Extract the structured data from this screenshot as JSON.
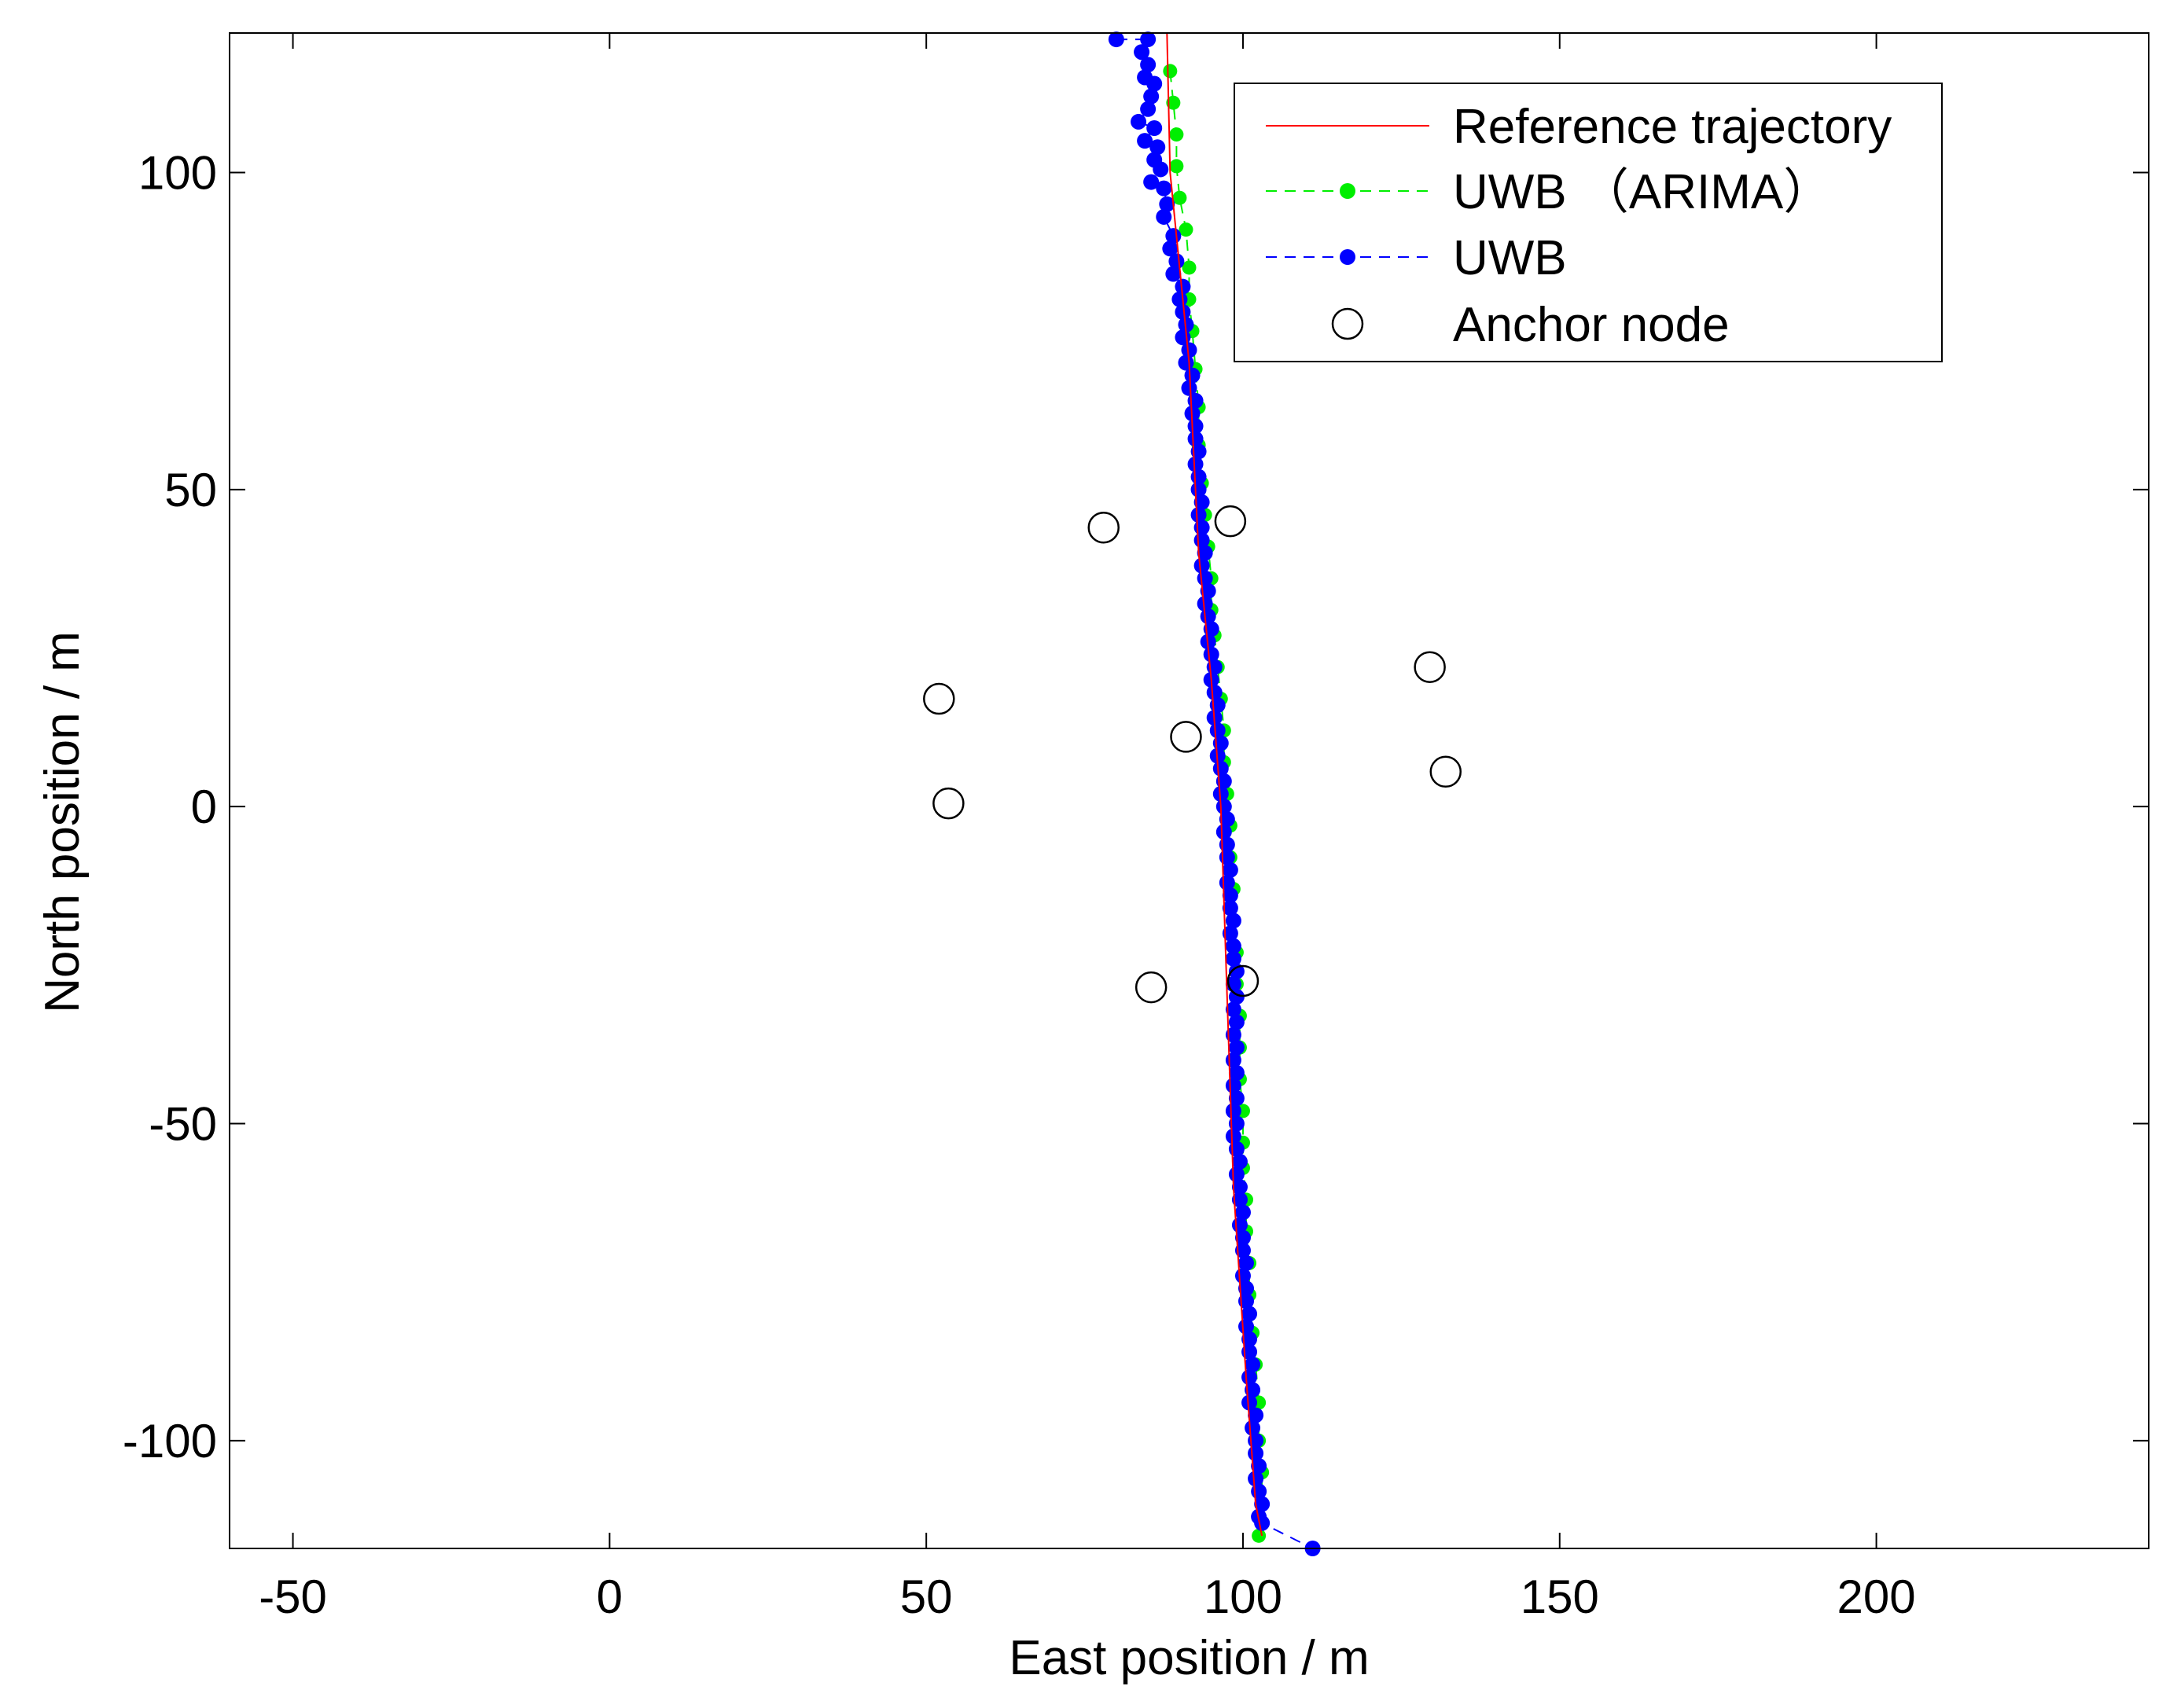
{
  "chart_data": {
    "type": "scatter",
    "title": "",
    "xlabel": "East position / m",
    "ylabel": "North position / m",
    "xlim": [
      -60,
      243
    ],
    "ylim": [
      -117,
      122
    ],
    "xticks": [
      -50,
      0,
      50,
      100,
      150,
      200
    ],
    "yticks": [
      -100,
      -50,
      0,
      50,
      100
    ],
    "grid": false,
    "legend_position": "top-right",
    "colors": {
      "reference": "#ff0000",
      "uwb_arima": "#00ee00",
      "uwb": "#0000ff",
      "anchor": "#000000"
    },
    "series": [
      {
        "name": "Reference trajectory",
        "style": "line",
        "points": [
          [
            88.0,
            122
          ],
          [
            88.5,
            100
          ],
          [
            91.5,
            70
          ],
          [
            93.0,
            40
          ],
          [
            95.0,
            20
          ],
          [
            96.5,
            0
          ],
          [
            97.5,
            -30
          ],
          [
            98.5,
            -60
          ],
          [
            100.5,
            -90
          ],
          [
            102.0,
            -110
          ],
          [
            103.0,
            -115
          ]
        ]
      },
      {
        "name": "UWB （ARIMA）",
        "style": "dashed-markers",
        "points": [
          [
            88.5,
            116
          ],
          [
            89,
            111
          ],
          [
            89.5,
            106
          ],
          [
            89.5,
            101
          ],
          [
            90,
            96
          ],
          [
            91,
            91
          ],
          [
            91.5,
            85
          ],
          [
            91.5,
            80
          ],
          [
            92,
            75
          ],
          [
            92.5,
            69
          ],
          [
            93,
            63
          ],
          [
            93,
            57
          ],
          [
            93.5,
            51
          ],
          [
            94,
            46
          ],
          [
            94.5,
            41
          ],
          [
            95,
            36
          ],
          [
            95,
            31
          ],
          [
            95.5,
            27
          ],
          [
            96,
            22
          ],
          [
            96.5,
            17
          ],
          [
            97,
            12
          ],
          [
            97,
            7
          ],
          [
            97.5,
            2
          ],
          [
            98,
            -3
          ],
          [
            98,
            -8
          ],
          [
            98.5,
            -13
          ],
          [
            98.5,
            -18
          ],
          [
            99,
            -23
          ],
          [
            99,
            -28
          ],
          [
            99.5,
            -33
          ],
          [
            99.5,
            -38
          ],
          [
            99.5,
            -43
          ],
          [
            100,
            -48
          ],
          [
            100,
            -53
          ],
          [
            100,
            -57
          ],
          [
            100.5,
            -62
          ],
          [
            100.5,
            -67
          ],
          [
            101,
            -72
          ],
          [
            101,
            -77
          ],
          [
            101.5,
            -83
          ],
          [
            102,
            -88
          ],
          [
            102.5,
            -94
          ],
          [
            102.5,
            -100
          ],
          [
            103,
            -105
          ],
          [
            103,
            -110
          ],
          [
            102.5,
            -115
          ]
        ]
      },
      {
        "name": "UWB",
        "style": "dashed-markers",
        "points": [
          [
            80,
            121
          ],
          [
            85,
            121
          ],
          [
            84,
            119
          ],
          [
            85,
            117
          ],
          [
            84.5,
            115
          ],
          [
            86,
            114
          ],
          [
            85.5,
            112
          ],
          [
            85,
            110
          ],
          [
            83.5,
            108
          ],
          [
            86,
            107
          ],
          [
            84.5,
            105
          ],
          [
            86.5,
            104
          ],
          [
            86,
            102
          ],
          [
            87,
            100.5
          ],
          [
            85.5,
            98.5
          ],
          [
            87.5,
            97.5
          ],
          [
            88,
            95
          ],
          [
            87.5,
            93
          ],
          [
            89,
            90
          ],
          [
            88.5,
            88
          ],
          [
            89.5,
            86
          ],
          [
            89,
            84
          ],
          [
            90.5,
            82
          ],
          [
            90,
            80
          ],
          [
            90.5,
            78
          ],
          [
            91,
            76
          ],
          [
            90.5,
            74
          ],
          [
            91.5,
            72
          ],
          [
            91,
            70
          ],
          [
            92,
            68
          ],
          [
            91.5,
            66
          ],
          [
            92.5,
            64
          ],
          [
            92,
            62
          ],
          [
            92.5,
            60
          ],
          [
            92.5,
            58
          ],
          [
            93,
            56
          ],
          [
            92.5,
            54
          ],
          [
            93,
            52
          ],
          [
            93,
            50
          ],
          [
            93.5,
            48
          ],
          [
            93,
            46
          ],
          [
            93.5,
            44
          ],
          [
            93.5,
            42
          ],
          [
            94,
            40
          ],
          [
            93.5,
            38
          ],
          [
            94,
            36
          ],
          [
            94.5,
            34
          ],
          [
            94,
            32
          ],
          [
            94.5,
            30
          ],
          [
            95,
            28
          ],
          [
            94.5,
            26
          ],
          [
            95,
            24
          ],
          [
            95.5,
            22
          ],
          [
            95,
            20
          ],
          [
            95.5,
            18
          ],
          [
            96,
            16
          ],
          [
            95.5,
            14
          ],
          [
            96,
            12
          ],
          [
            96.5,
            10
          ],
          [
            96,
            8
          ],
          [
            96.5,
            6
          ],
          [
            97,
            4
          ],
          [
            96.5,
            2
          ],
          [
            97,
            0
          ],
          [
            97.5,
            -2
          ],
          [
            97,
            -4
          ],
          [
            97.5,
            -6
          ],
          [
            97.5,
            -8
          ],
          [
            98,
            -10
          ],
          [
            97.5,
            -12
          ],
          [
            98,
            -14
          ],
          [
            98,
            -16
          ],
          [
            98.5,
            -18
          ],
          [
            98,
            -20
          ],
          [
            98.5,
            -22
          ],
          [
            98.5,
            -24
          ],
          [
            99,
            -26
          ],
          [
            98.5,
            -28
          ],
          [
            99,
            -30
          ],
          [
            98.5,
            -32
          ],
          [
            99,
            -34
          ],
          [
            98.5,
            -36
          ],
          [
            99,
            -38
          ],
          [
            98.5,
            -40
          ],
          [
            99,
            -42
          ],
          [
            98.5,
            -44
          ],
          [
            99,
            -46
          ],
          [
            98.5,
            -48
          ],
          [
            99,
            -50
          ],
          [
            98.5,
            -52
          ],
          [
            99,
            -54
          ],
          [
            99.5,
            -56
          ],
          [
            99,
            -58
          ],
          [
            99.5,
            -60
          ],
          [
            99.5,
            -62
          ],
          [
            100,
            -64
          ],
          [
            99.5,
            -66
          ],
          [
            100,
            -68
          ],
          [
            100,
            -70
          ],
          [
            100.5,
            -72
          ],
          [
            100,
            -74
          ],
          [
            100.5,
            -76
          ],
          [
            100.5,
            -78
          ],
          [
            101,
            -80
          ],
          [
            100.5,
            -82
          ],
          [
            101,
            -84
          ],
          [
            101,
            -86
          ],
          [
            101.5,
            -88
          ],
          [
            101,
            -90
          ],
          [
            101.5,
            -92
          ],
          [
            101,
            -94
          ],
          [
            102,
            -96
          ],
          [
            101.5,
            -98
          ],
          [
            102,
            -100
          ],
          [
            102,
            -102
          ],
          [
            102.5,
            -104
          ],
          [
            102,
            -106
          ],
          [
            102.5,
            -108
          ],
          [
            103,
            -110
          ],
          [
            102.5,
            -112
          ],
          [
            103,
            -113
          ],
          [
            111,
            -117
          ]
        ]
      },
      {
        "name": "Anchor node",
        "style": "open-circles",
        "points": [
          [
            78,
            44
          ],
          [
            98,
            45
          ],
          [
            52,
            17
          ],
          [
            91,
            11
          ],
          [
            53.5,
            0.5
          ],
          [
            129.5,
            22
          ],
          [
            132,
            5.5
          ],
          [
            85.5,
            -28.5
          ],
          [
            100,
            -27.5
          ]
        ]
      }
    ]
  }
}
